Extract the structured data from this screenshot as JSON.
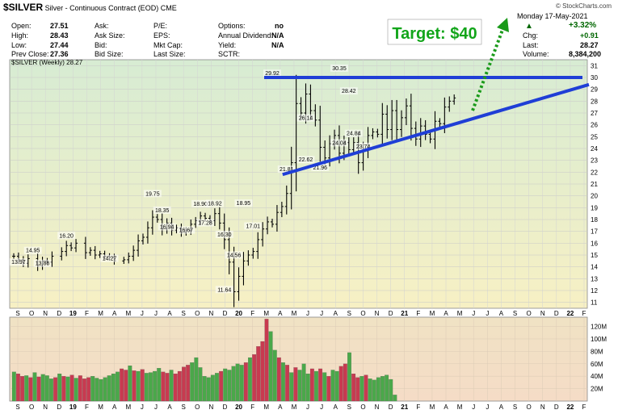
{
  "header": {
    "symbol": "$SILVER",
    "description": "Silver - Continuous Contract (EOD)",
    "exchange": "CME",
    "watermark": "© StockCharts.com",
    "date": "Monday  17-May-2021",
    "change_pct": "+3.32%",
    "up_arrow": "▲",
    "labels": {
      "open": "Open:",
      "high": "High:",
      "low": "Low:",
      "prev_close": "Prev Close:",
      "ask": "Ask:",
      "ask_size": "Ask Size:",
      "bid": "Bid:",
      "bid_size": "Bid Size:",
      "pe": "P/E:",
      "eps": "EPS:",
      "mkt_cap": "Mkt Cap:",
      "last_size": "Last Size:",
      "options": "Options:",
      "annual_dividend": "Annual Dividend:",
      "yield": "Yield:",
      "sctr": "SCTR:",
      "chg": "Chg:",
      "last": "Last:",
      "volume": "Volume:"
    },
    "values": {
      "open": "27.51",
      "high": "28.43",
      "low": "27.44",
      "prev_close": "27.36",
      "options": "no",
      "annual_dividend": "N/A",
      "yield": "N/A",
      "chg": "+0.91",
      "last": "28.27",
      "volume": "8,384,200"
    }
  },
  "chart_data": [
    {
      "type": "ohlc",
      "legend": "$SILVER (Weekly) 28.27",
      "y_ticks": [
        11,
        12,
        13,
        14,
        15,
        16,
        17,
        18,
        19,
        20,
        21,
        22,
        23,
        24,
        25,
        26,
        27,
        28,
        29,
        30,
        31
      ],
      "ylim": [
        10.5,
        31.5
      ],
      "x_month_labels": [
        "S",
        "O",
        "N",
        "D",
        "19",
        "F",
        "M",
        "A",
        "M",
        "J",
        "J",
        "A",
        "S",
        "O",
        "N",
        "D",
        "20",
        "F",
        "M",
        "A",
        "M",
        "J",
        "J",
        "A",
        "S",
        "O",
        "N",
        "D",
        "21",
        "F",
        "M",
        "A",
        "M",
        "J",
        "J",
        "A",
        "S",
        "O",
        "N",
        "D",
        "22",
        "F"
      ],
      "price_path": [
        [
          14.9,
          0
        ],
        [
          14.6,
          1
        ],
        [
          14.3,
          2
        ],
        [
          14.7,
          3
        ],
        [
          14.1,
          5
        ],
        [
          14.5,
          6
        ],
        [
          14.4,
          7
        ],
        [
          14.9,
          8
        ],
        [
          15.3,
          10
        ],
        [
          15.8,
          11
        ],
        [
          15.6,
          12
        ],
        [
          16.0,
          13
        ],
        [
          15.2,
          15
        ],
        [
          15.4,
          16
        ],
        [
          15.0,
          17
        ],
        [
          15.1,
          18
        ],
        [
          14.9,
          19
        ],
        [
          14.8,
          20
        ],
        [
          14.5,
          21
        ],
        [
          14.6,
          23
        ],
        [
          14.9,
          24
        ],
        [
          15.4,
          25
        ],
        [
          16.2,
          26
        ],
        [
          16.5,
          27
        ],
        [
          17.3,
          28
        ],
        [
          18.2,
          29
        ],
        [
          18.0,
          30
        ],
        [
          17.2,
          31
        ],
        [
          17.7,
          32
        ],
        [
          17.1,
          33
        ],
        [
          17.3,
          34
        ],
        [
          16.9,
          35
        ],
        [
          17.1,
          36
        ],
        [
          17.6,
          37
        ],
        [
          17.9,
          38
        ],
        [
          18.3,
          39
        ],
        [
          18.1,
          40
        ],
        [
          17.9,
          41
        ],
        [
          18.5,
          42
        ],
        [
          17.7,
          43
        ],
        [
          16.3,
          44
        ],
        [
          14.4,
          45
        ],
        [
          11.9,
          46
        ],
        [
          13.2,
          47
        ],
        [
          14.5,
          48
        ],
        [
          15.0,
          49
        ],
        [
          15.3,
          50
        ],
        [
          16.3,
          51
        ],
        [
          17.2,
          52
        ],
        [
          17.8,
          53
        ],
        [
          17.6,
          54
        ],
        [
          18.6,
          55
        ],
        [
          19.1,
          56
        ],
        [
          20.2,
          57
        ],
        [
          22.8,
          58
        ],
        [
          27.8,
          59
        ],
        [
          27.0,
          60
        ],
        [
          28.6,
          61
        ],
        [
          27.2,
          62
        ],
        [
          26.4,
          63
        ],
        [
          24.1,
          64
        ],
        [
          23.2,
          65
        ],
        [
          24.4,
          66
        ],
        [
          25.1,
          67
        ],
        [
          23.6,
          68
        ],
        [
          24.5,
          69
        ],
        [
          23.9,
          70
        ],
        [
          24.5,
          71
        ],
        [
          22.8,
          72
        ],
        [
          23.9,
          73
        ],
        [
          25.1,
          74
        ],
        [
          25.4,
          75
        ],
        [
          25.2,
          76
        ],
        [
          26.9,
          77
        ],
        [
          25.6,
          78
        ],
        [
          27.2,
          79
        ],
        [
          25.6,
          80
        ],
        [
          26.6,
          81
        ],
        [
          27.6,
          82
        ],
        [
          25.7,
          83
        ],
        [
          24.8,
          84
        ],
        [
          25.9,
          85
        ],
        [
          25.2,
          86
        ],
        [
          24.8,
          87
        ],
        [
          26.3,
          88
        ],
        [
          26.1,
          89
        ],
        [
          27.5,
          90
        ],
        [
          28.0,
          91
        ],
        [
          28.27,
          92
        ]
      ],
      "annotations": [
        {
          "label": "14.95",
          "x": 4,
          "y": 14.95
        },
        {
          "label": "13.97",
          "x": 1,
          "y": 13.97
        },
        {
          "label": "13.86",
          "x": 6,
          "y": 13.86
        },
        {
          "label": "16.20",
          "x": 11,
          "y": 16.2
        },
        {
          "label": "14.27",
          "x": 20,
          "y": 14.27
        },
        {
          "label": "19.75",
          "x": 29,
          "y": 19.75
        },
        {
          "label": "18.35",
          "x": 31,
          "y": 18.35
        },
        {
          "label": "16.94",
          "x": 32,
          "y": 16.94
        },
        {
          "label": "16.67",
          "x": 36,
          "y": 16.67
        },
        {
          "label": "18.90",
          "x": 39,
          "y": 18.9
        },
        {
          "label": "17.28",
          "x": 40,
          "y": 17.28
        },
        {
          "label": "18.92",
          "x": 42,
          "y": 18.92
        },
        {
          "label": "16.30",
          "x": 44,
          "y": 16.3
        },
        {
          "label": "14.56",
          "x": 46,
          "y": 14.56
        },
        {
          "label": "11.64",
          "x": 44,
          "y": 11.64
        },
        {
          "label": "18.95",
          "x": 48,
          "y": 18.95
        },
        {
          "label": "17.01",
          "x": 50,
          "y": 17.01
        },
        {
          "label": "29.92",
          "x": 54,
          "y": 29.92
        },
        {
          "label": "21.81",
          "x": 57,
          "y": 21.81
        },
        {
          "label": "26.14",
          "x": 61,
          "y": 26.14
        },
        {
          "label": "22.62",
          "x": 61,
          "y": 22.62
        },
        {
          "label": "21.96",
          "x": 64,
          "y": 21.96
        },
        {
          "label": "30.35",
          "x": 68,
          "y": 30.35
        },
        {
          "label": "28.42",
          "x": 70,
          "y": 28.42
        },
        {
          "label": "24.04",
          "x": 68,
          "y": 24.04
        },
        {
          "label": "24.84",
          "x": 71,
          "y": 24.84
        },
        {
          "label": "23.74",
          "x": 73,
          "y": 23.74
        }
      ],
      "resistance_level": 30.0,
      "support_line": [
        [
          21.8,
          57
        ],
        [
          29.4,
          104
        ]
      ],
      "projection_arrow_target": "Target: $40"
    },
    {
      "type": "bar",
      "series_name": "Volume",
      "y_ticks": [
        "20M",
        "40M",
        "60M",
        "80M",
        "100M",
        "120M"
      ],
      "ylim": [
        0,
        135
      ],
      "note": "weekly volume in millions",
      "values": [
        47,
        44,
        40,
        41,
        38,
        46,
        39,
        43,
        41,
        36,
        38,
        44,
        40,
        39,
        42,
        37,
        41,
        36,
        38,
        40,
        37,
        35,
        38,
        41,
        44,
        47,
        52,
        50,
        57,
        49,
        48,
        51,
        45,
        46,
        48,
        53,
        47,
        45,
        50,
        44,
        48,
        55,
        58,
        62,
        70,
        54,
        40,
        38,
        42,
        45,
        48,
        52,
        50,
        56,
        60,
        58,
        62,
        70,
        75,
        88,
        96,
        132,
        112,
        82,
        70,
        62,
        58,
        46,
        54,
        50,
        60,
        44,
        52,
        48,
        52,
        46,
        40,
        50,
        48,
        56,
        60,
        78,
        44,
        38,
        40,
        42,
        36,
        34,
        38,
        40,
        42,
        35,
        10
      ],
      "up_down_pattern": "green for up weeks, red for down weeks"
    }
  ],
  "colors": {
    "panel_top": "#d7ecd3",
    "panel_bottom": "#f7f0c4",
    "vol_panel": "#f5ddc6",
    "up": "#4aa84a",
    "down": "#c83a50",
    "trend": "#1f3ed6",
    "arrow": "#1a9a1a",
    "target_text": "#12a51a"
  }
}
